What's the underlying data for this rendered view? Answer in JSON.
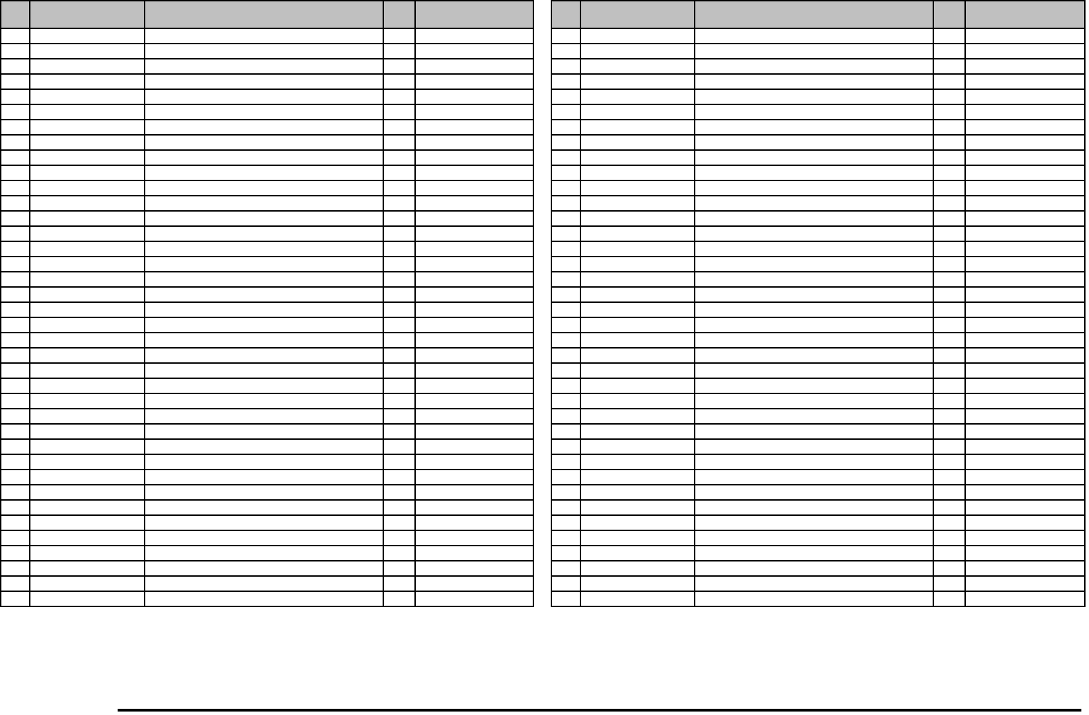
{
  "tables": [
    {
      "columns": [
        "",
        "",
        "",
        "",
        ""
      ],
      "rows": [
        [
          "",
          "",
          "",
          "",
          ""
        ],
        [
          "",
          "",
          "",
          "",
          ""
        ],
        [
          "",
          "",
          "",
          "",
          ""
        ],
        [
          "",
          "",
          "",
          "",
          ""
        ],
        [
          "",
          "",
          "",
          "",
          ""
        ],
        [
          "",
          "",
          "",
          "",
          ""
        ],
        [
          "",
          "",
          "",
          "",
          ""
        ],
        [
          "",
          "",
          "",
          "",
          ""
        ],
        [
          "",
          "",
          "",
          "",
          ""
        ],
        [
          "",
          "",
          "",
          "",
          ""
        ],
        [
          "",
          "",
          "",
          "",
          ""
        ],
        [
          "",
          "",
          "",
          "",
          ""
        ],
        [
          "",
          "",
          "",
          "",
          ""
        ],
        [
          "",
          "",
          "",
          "",
          ""
        ],
        [
          "",
          "",
          "",
          "",
          ""
        ],
        [
          "",
          "",
          "",
          "",
          ""
        ],
        [
          "",
          "",
          "",
          "",
          ""
        ],
        [
          "",
          "",
          "",
          "",
          ""
        ],
        [
          "",
          "",
          "",
          "",
          ""
        ],
        [
          "",
          "",
          "",
          "",
          ""
        ],
        [
          "",
          "",
          "",
          "",
          ""
        ],
        [
          "",
          "",
          "",
          "",
          ""
        ],
        [
          "",
          "",
          "",
          "",
          ""
        ],
        [
          "",
          "",
          "",
          "",
          ""
        ],
        [
          "",
          "",
          "",
          "",
          ""
        ],
        [
          "",
          "",
          "",
          "",
          ""
        ],
        [
          "",
          "",
          "",
          "",
          ""
        ],
        [
          "",
          "",
          "",
          "",
          ""
        ],
        [
          "",
          "",
          "",
          "",
          ""
        ],
        [
          "",
          "",
          "",
          "",
          ""
        ],
        [
          "",
          "",
          "",
          "",
          ""
        ],
        [
          "",
          "",
          "",
          "",
          ""
        ],
        [
          "",
          "",
          "",
          "",
          ""
        ],
        [
          "",
          "",
          "",
          "",
          ""
        ],
        [
          "",
          "",
          "",
          "",
          ""
        ],
        [
          "",
          "",
          "",
          "",
          ""
        ],
        [
          "",
          "",
          "",
          "",
          ""
        ],
        [
          "",
          "",
          "",
          "",
          ""
        ]
      ]
    },
    {
      "columns": [
        "",
        "",
        "",
        "",
        ""
      ],
      "rows": [
        [
          "",
          "",
          "",
          "",
          ""
        ],
        [
          "",
          "",
          "",
          "",
          ""
        ],
        [
          "",
          "",
          "",
          "",
          ""
        ],
        [
          "",
          "",
          "",
          "",
          ""
        ],
        [
          "",
          "",
          "",
          "",
          ""
        ],
        [
          "",
          "",
          "",
          "",
          ""
        ],
        [
          "",
          "",
          "",
          "",
          ""
        ],
        [
          "",
          "",
          "",
          "",
          ""
        ],
        [
          "",
          "",
          "",
          "",
          ""
        ],
        [
          "",
          "",
          "",
          "",
          ""
        ],
        [
          "",
          "",
          "",
          "",
          ""
        ],
        [
          "",
          "",
          "",
          "",
          ""
        ],
        [
          "",
          "",
          "",
          "",
          ""
        ],
        [
          "",
          "",
          "",
          "",
          ""
        ],
        [
          "",
          "",
          "",
          "",
          ""
        ],
        [
          "",
          "",
          "",
          "",
          ""
        ],
        [
          "",
          "",
          "",
          "",
          ""
        ],
        [
          "",
          "",
          "",
          "",
          ""
        ],
        [
          "",
          "",
          "",
          "",
          ""
        ],
        [
          "",
          "",
          "",
          "",
          ""
        ],
        [
          "",
          "",
          "",
          "",
          ""
        ],
        [
          "",
          "",
          "",
          "",
          ""
        ],
        [
          "",
          "",
          "",
          "",
          ""
        ],
        [
          "",
          "",
          "",
          "",
          ""
        ],
        [
          "",
          "",
          "",
          "",
          ""
        ],
        [
          "",
          "",
          "",
          "",
          ""
        ],
        [
          "",
          "",
          "",
          "",
          ""
        ],
        [
          "",
          "",
          "",
          "",
          ""
        ],
        [
          "",
          "",
          "",
          "",
          ""
        ],
        [
          "",
          "",
          "",
          "",
          ""
        ],
        [
          "",
          "",
          "",
          "",
          ""
        ],
        [
          "",
          "",
          "",
          "",
          ""
        ],
        [
          "",
          "",
          "",
          "",
          ""
        ],
        [
          "",
          "",
          "",
          "",
          ""
        ],
        [
          "",
          "",
          "",
          "",
          ""
        ],
        [
          "",
          "",
          "",
          "",
          ""
        ],
        [
          "",
          "",
          "",
          "",
          ""
        ],
        [
          "",
          "",
          "",
          "",
          ""
        ]
      ]
    }
  ],
  "colors": {
    "header_fill": "#c0c0c0",
    "border": "#000000"
  }
}
